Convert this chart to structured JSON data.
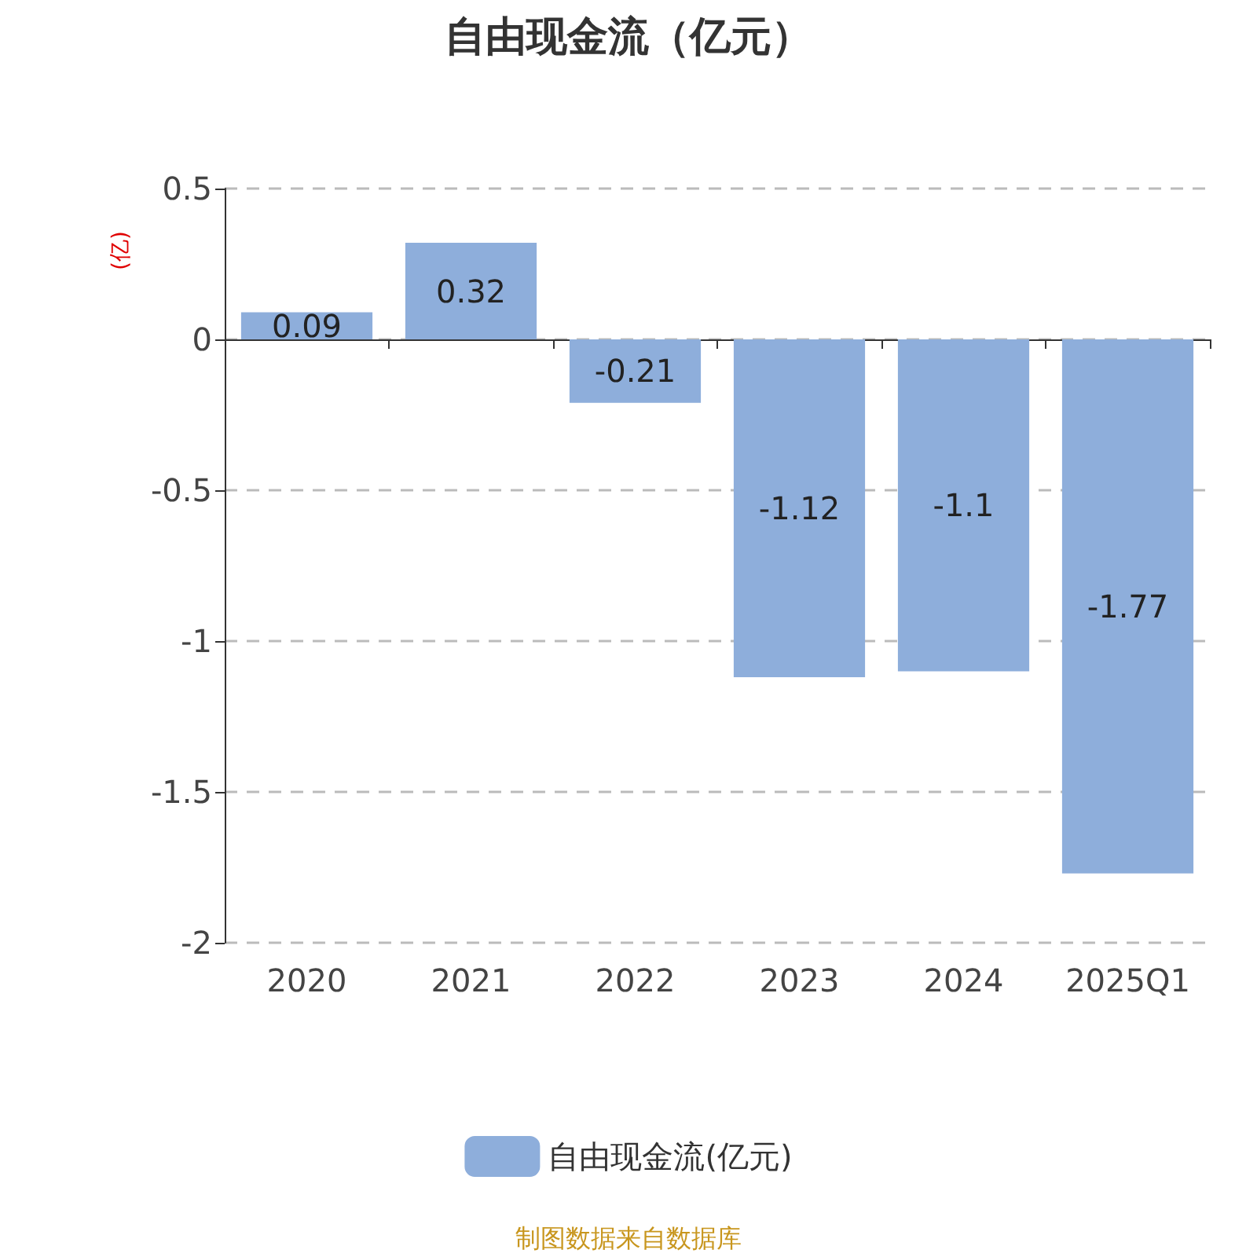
{
  "chart_data": {
    "type": "bar",
    "title": "自由现金流（亿元）",
    "ylabel": "(亿)",
    "categories": [
      "2020",
      "2021",
      "2022",
      "2023",
      "2024",
      "2025Q1"
    ],
    "series": [
      {
        "name": "自由现金流(亿元)",
        "color": "#8eaedb",
        "values": [
          0.09,
          0.32,
          -0.21,
          -1.12,
          -1.1,
          -1.77
        ]
      }
    ],
    "ylim": [
      -2,
      0.5
    ],
    "yticks": [
      -2,
      -1.5,
      -1,
      -0.5,
      0,
      0.5
    ],
    "grid": "y",
    "legend": "bottom",
    "data_labels": true,
    "annotations": [
      "制图数据来自数据库"
    ]
  }
}
